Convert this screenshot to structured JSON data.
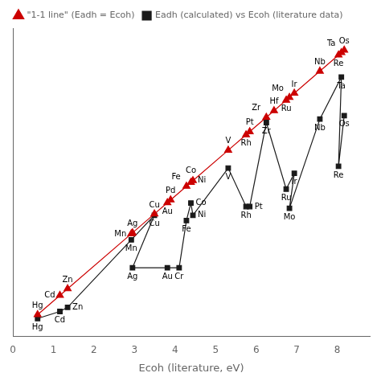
{
  "chart_data": {
    "type": "line",
    "xlabel": "Ecoh (literature, eV)",
    "xlim": [
      0,
      8.8
    ],
    "xticks": [
      0,
      1,
      2,
      3,
      4,
      5,
      6,
      7,
      8
    ],
    "ylim": [
      0,
      8.8
    ],
    "yticks": [],
    "tick_labels": "x",
    "grid": false,
    "legend": "upper left",
    "series": [
      {
        "name": "Eadh (calculated) vs Ecoh (literature data)",
        "color": "#1a1a1a",
        "marker": "square",
        "x": [
          0.61,
          1.16,
          1.35,
          2.92,
          3.49,
          2.95,
          3.81,
          4.1,
          4.28,
          4.39,
          4.44,
          5.31,
          5.75,
          5.84,
          6.25,
          6.74,
          6.94,
          6.82,
          7.57,
          8.1,
          8.03,
          8.17
        ],
        "values": [
          0.5,
          0.7,
          0.82,
          2.75,
          3.45,
          1.95,
          1.95,
          1.95,
          3.3,
          3.8,
          3.45,
          4.8,
          3.7,
          3.7,
          6.1,
          4.2,
          4.65,
          3.65,
          6.2,
          7.4,
          4.85,
          6.3
        ],
        "point_labels": [
          "Hg",
          "Cd",
          "Zn",
          "Mn",
          "Cu",
          "Ag",
          "Au",
          "Cr",
          "Fe",
          "Co",
          "Ni",
          "V",
          "Rh",
          "Pt",
          "Zr",
          "Ru",
          "Ir",
          "Mo",
          "Nb",
          "Ta",
          "Re",
          "Os"
        ]
      },
      {
        "name": "\"1-1 line\" (Eadh = Ecoh)",
        "color": "#cc0000",
        "marker": "triangle",
        "x": [
          0.61,
          1.16,
          1.35,
          2.92,
          2.95,
          3.49,
          3.81,
          3.89,
          4.28,
          4.39,
          4.44,
          5.31,
          5.75,
          5.84,
          6.25,
          6.44,
          6.74,
          6.82,
          6.94,
          7.57,
          8.03,
          8.1,
          8.17
        ],
        "values": [
          0.61,
          1.16,
          1.35,
          2.92,
          2.95,
          3.49,
          3.81,
          3.89,
          4.28,
          4.39,
          4.44,
          5.31,
          5.75,
          5.84,
          6.25,
          6.44,
          6.74,
          6.82,
          6.94,
          7.57,
          8.03,
          8.1,
          8.17
        ],
        "point_labels": [
          "Hg",
          "Cd",
          "Zn",
          "Mn",
          "Ag",
          "Cu",
          "Au",
          "Pd",
          "Fe",
          "Co",
          "Ni",
          "V",
          "Rh",
          "Pt",
          "Zr",
          "Hf",
          "Ru",
          "Mo",
          "Ir",
          "Nb",
          "Re",
          "Ta",
          "Os"
        ]
      }
    ]
  }
}
